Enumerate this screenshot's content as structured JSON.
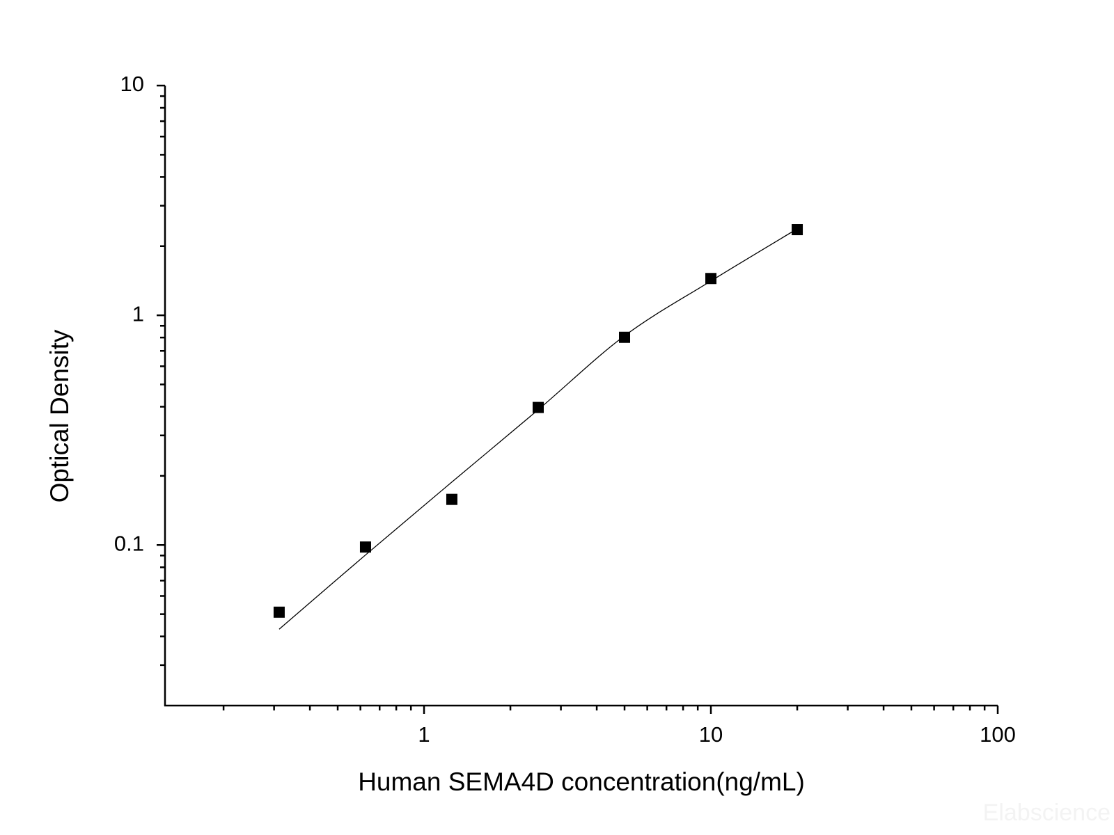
{
  "chart_data": {
    "type": "scatter",
    "x_label": "Human SEMA4D concentration(ng/mL)",
    "y_label": "Optical Density",
    "watermark": "Elabscience",
    "x": [
      0.3125,
      0.625,
      1.25,
      2.5,
      5,
      10,
      20
    ],
    "series": [
      {
        "color": "#000000",
        "values": [
          0.051,
          0.098,
          0.158,
          0.397,
          0.802,
          1.446,
          2.36
        ]
      },
      {
        "color": "#000000",
        "style": "curve",
        "values": [
          0.043,
          0.0905,
          0.188,
          0.388,
          0.814,
          1.41,
          2.38
        ]
      }
    ],
    "xlog": true,
    "ylog": true,
    "xlim": [
      0.125,
      100
    ],
    "ylim": [
      0.02,
      10
    ],
    "xticks": [
      1,
      10,
      100
    ],
    "yticks": [
      0.1,
      1,
      10
    ],
    "xminor_ticks": [
      0.2,
      0.3,
      0.4,
      0.5,
      0.6,
      0.7,
      0.8,
      0.9,
      2,
      3,
      4,
      5,
      6,
      7,
      8,
      9,
      20,
      30,
      40,
      50,
      60,
      70,
      80,
      90
    ],
    "yminor_ticks": [
      0.03,
      0.04,
      0.05,
      0.06,
      0.07,
      0.08,
      0.09,
      0.2,
      0.3,
      0.4,
      0.5,
      0.6,
      0.7,
      0.8,
      0.9,
      2,
      3,
      4,
      5,
      6,
      7,
      8,
      9
    ]
  }
}
